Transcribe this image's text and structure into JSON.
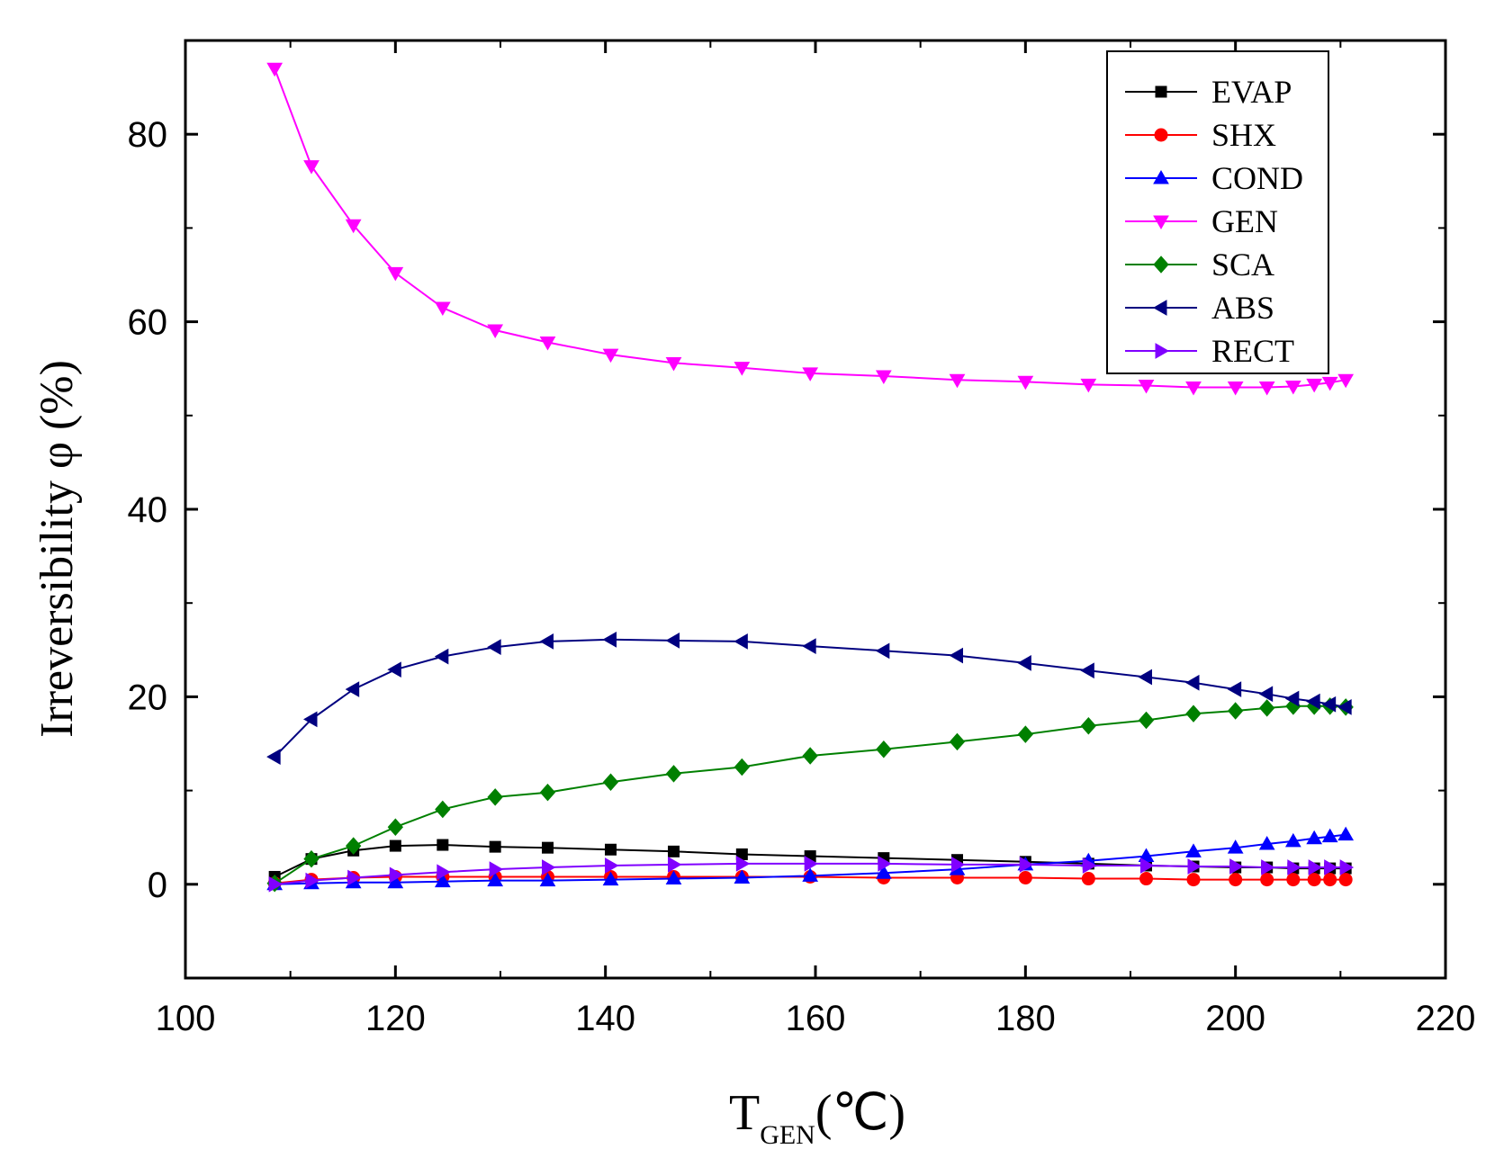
{
  "chart_data": {
    "type": "line",
    "title": "",
    "xlabel": "T",
    "xlabel_sub": "GEN",
    "xlabel_unit": "(℃)",
    "ylabel": "Irreversibility φ (%)",
    "xlim": [
      100,
      220
    ],
    "ylim": [
      -10,
      90
    ],
    "x_ticks": [
      100,
      120,
      140,
      160,
      180,
      200,
      220
    ],
    "y_ticks": [
      0,
      20,
      40,
      60,
      80
    ],
    "grid": false,
    "legend_position": "top-right",
    "x": [
      108.5,
      112,
      116,
      120,
      124.5,
      129.5,
      134.5,
      140.5,
      146.5,
      153,
      159.5,
      166.5,
      173.5,
      180,
      186,
      191.5,
      196,
      200,
      203,
      205.5,
      207.5,
      209,
      210.5
    ],
    "series": [
      {
        "name": "EVAP",
        "color": "#000000",
        "marker": "square",
        "values": [
          0.8,
          2.7,
          3.6,
          4.1,
          4.2,
          4.0,
          3.9,
          3.7,
          3.5,
          3.2,
          3.0,
          2.8,
          2.6,
          2.4,
          2.2,
          2.0,
          1.9,
          1.8,
          1.8,
          1.7,
          1.7,
          1.7,
          1.7
        ]
      },
      {
        "name": "SHX",
        "color": "#ff0000",
        "marker": "circle",
        "values": [
          0.1,
          0.5,
          0.7,
          0.8,
          0.8,
          0.8,
          0.8,
          0.8,
          0.8,
          0.8,
          0.8,
          0.7,
          0.7,
          0.7,
          0.6,
          0.6,
          0.5,
          0.5,
          0.5,
          0.5,
          0.5,
          0.5,
          0.5
        ]
      },
      {
        "name": "COND",
        "color": "#0000ff",
        "marker": "triangle-up",
        "values": [
          0.0,
          0.1,
          0.2,
          0.2,
          0.3,
          0.4,
          0.4,
          0.5,
          0.6,
          0.7,
          0.9,
          1.2,
          1.6,
          2.1,
          2.5,
          3.0,
          3.5,
          3.9,
          4.3,
          4.6,
          4.9,
          5.1,
          5.3
        ]
      },
      {
        "name": "GEN",
        "color": "#ff00ff",
        "marker": "triangle-down",
        "values": [
          87.0,
          76.6,
          70.3,
          65.2,
          61.5,
          59.1,
          57.8,
          56.5,
          55.6,
          55.1,
          54.5,
          54.2,
          53.8,
          53.6,
          53.3,
          53.2,
          53.0,
          53.0,
          53.0,
          53.1,
          53.3,
          53.5,
          53.8
        ]
      },
      {
        "name": "SCA",
        "color": "#008000",
        "marker": "diamond",
        "values": [
          0.1,
          2.7,
          4.1,
          6.1,
          8.0,
          9.3,
          9.8,
          10.9,
          11.8,
          12.5,
          13.7,
          14.4,
          15.2,
          16.0,
          16.9,
          17.5,
          18.2,
          18.5,
          18.8,
          19.0,
          19.0,
          19.0,
          18.9
        ]
      },
      {
        "name": "ABS",
        "color": "#000080",
        "marker": "triangle-left",
        "values": [
          13.6,
          17.6,
          20.8,
          22.9,
          24.3,
          25.3,
          25.9,
          26.1,
          26.0,
          25.9,
          25.4,
          24.9,
          24.4,
          23.6,
          22.8,
          22.1,
          21.5,
          20.8,
          20.3,
          19.8,
          19.5,
          19.2,
          18.9
        ]
      },
      {
        "name": "RECT",
        "color": "#8000ff",
        "marker": "triangle-right",
        "values": [
          0.0,
          0.4,
          0.7,
          1.0,
          1.3,
          1.6,
          1.8,
          2.0,
          2.1,
          2.2,
          2.2,
          2.2,
          2.1,
          2.1,
          2.0,
          2.0,
          1.9,
          1.9,
          1.8,
          1.8,
          1.8,
          1.8,
          1.8
        ]
      }
    ]
  }
}
